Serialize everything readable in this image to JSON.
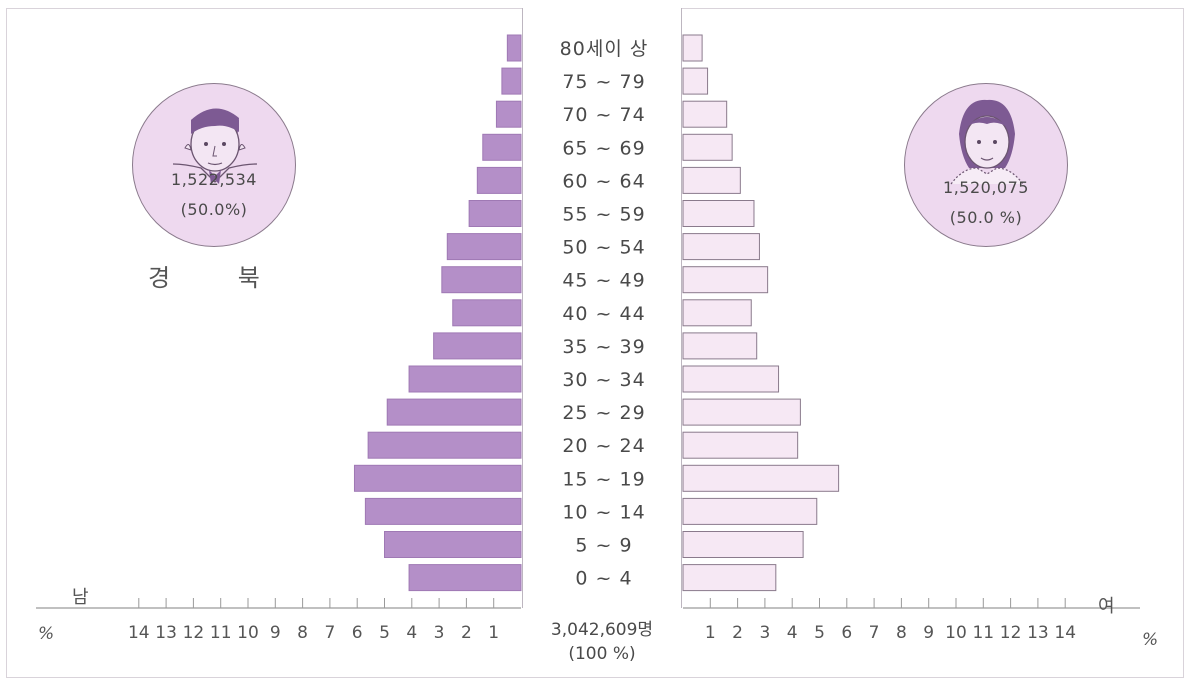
{
  "chart_data": {
    "type": "bar",
    "subtype": "population-pyramid",
    "region": "경 북",
    "categories": [
      "80세이 상",
      "75 ~ 79",
      "70 ~ 74",
      "65 ~ 69",
      "60 ~ 64",
      "55 ~ 59",
      "50 ~ 54",
      "45 ~ 49",
      "40 ~ 44",
      "35 ~ 39",
      "30 ~ 34",
      "25 ~ 29",
      "20 ~ 24",
      "15 ~ 19",
      "10 ~ 14",
      "5 ~ 9",
      "0 ~ 4"
    ],
    "series": [
      {
        "name": "남",
        "side": "left",
        "values": [
          0.5,
          0.7,
          0.9,
          1.4,
          1.6,
          1.9,
          2.7,
          2.9,
          2.5,
          3.2,
          4.1,
          4.9,
          5.6,
          6.1,
          5.7,
          5.0,
          4.1
        ],
        "color": "#b48fc8",
        "total_label": "1,522,534",
        "share_label": "(50.0%)"
      },
      {
        "name": "여",
        "side": "right",
        "values": [
          0.7,
          0.9,
          1.6,
          1.8,
          2.1,
          2.6,
          2.8,
          3.1,
          2.5,
          2.7,
          3.5,
          4.3,
          4.2,
          5.7,
          4.9,
          4.4,
          3.4
        ],
        "color": "#f6e8f4",
        "total_label": "1,520,075",
        "share_label": "(50.0 %)"
      }
    ],
    "x_ticks": [
      "14",
      "13",
      "12",
      "11",
      "10",
      "9",
      "8",
      "7",
      "6",
      "5",
      "4",
      "3",
      "2",
      "1"
    ],
    "x_ticks_right": [
      "1",
      "2",
      "3",
      "4",
      "5",
      "6",
      "7",
      "8",
      "9",
      "10",
      "11",
      "12",
      "13",
      "14"
    ],
    "xlim": [
      0,
      14
    ],
    "x_unit": "%",
    "total_label": "3,042,609명",
    "total_share": "(100 %)",
    "male_label": "남",
    "female_label": "여"
  },
  "colors": {
    "male_fill": "#b48fc8",
    "female_fill": "#f6e8f4",
    "outline": "#8a7a8c",
    "axis": "#8c8c8c"
  }
}
